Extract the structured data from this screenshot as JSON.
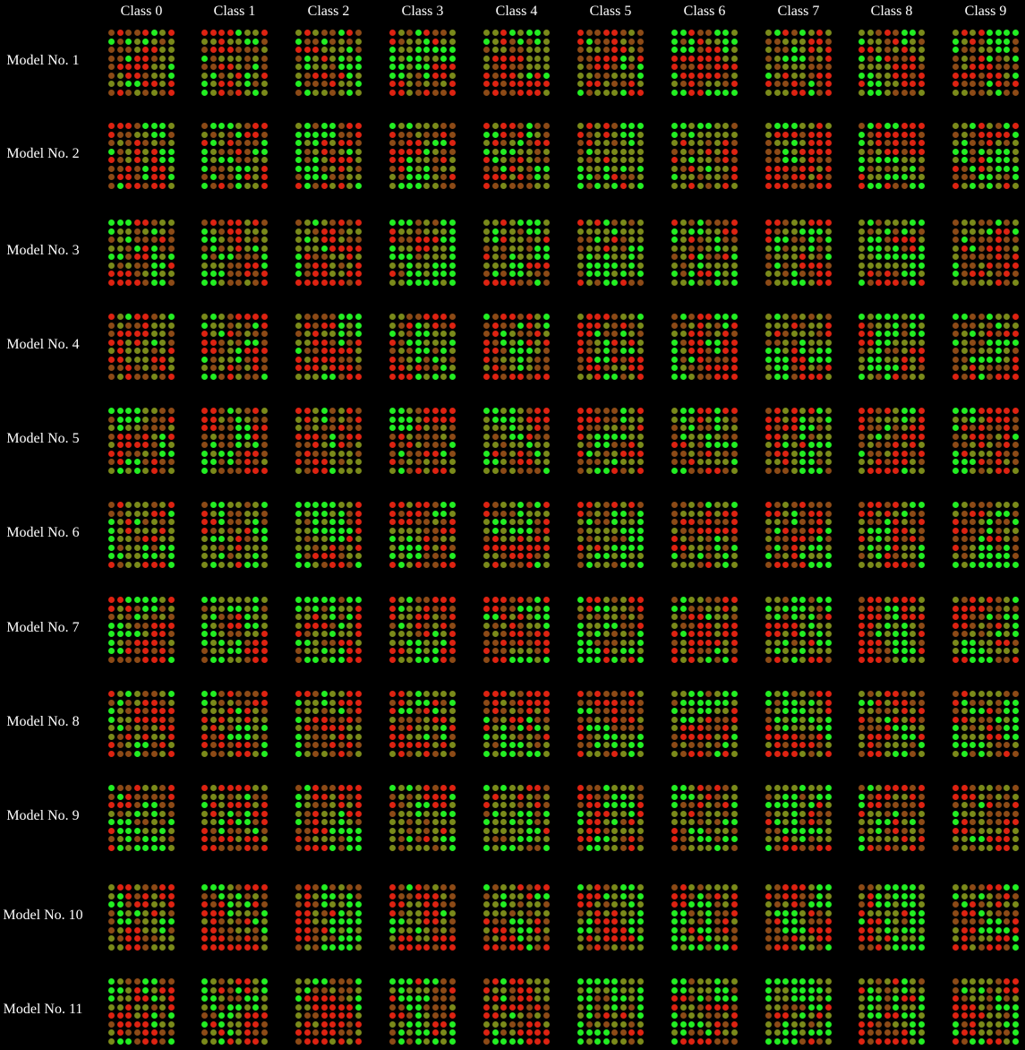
{
  "figure": {
    "columns": [
      "Class 0",
      "Class 1",
      "Class 2",
      "Class 3",
      "Class 4",
      "Class 5",
      "Class 6",
      "Class 7",
      "Class 8",
      "Class 9"
    ],
    "rows": [
      "Model No. 1",
      "Model No. 2",
      "Model No. 3",
      "Model No. 4",
      "Model No. 5",
      "Model No. 6",
      "Model No. 7",
      "Model No. 8",
      "Model No. 9",
      "Model No. 10",
      "Model No. 11"
    ],
    "grid_size": 8,
    "colors": {
      "background": "#000000",
      "text": "#ffffff",
      "green": "#22ee22",
      "olive": "#7a8a1a",
      "brown": "#8c4a16",
      "red": "#dd2211"
    }
  }
}
